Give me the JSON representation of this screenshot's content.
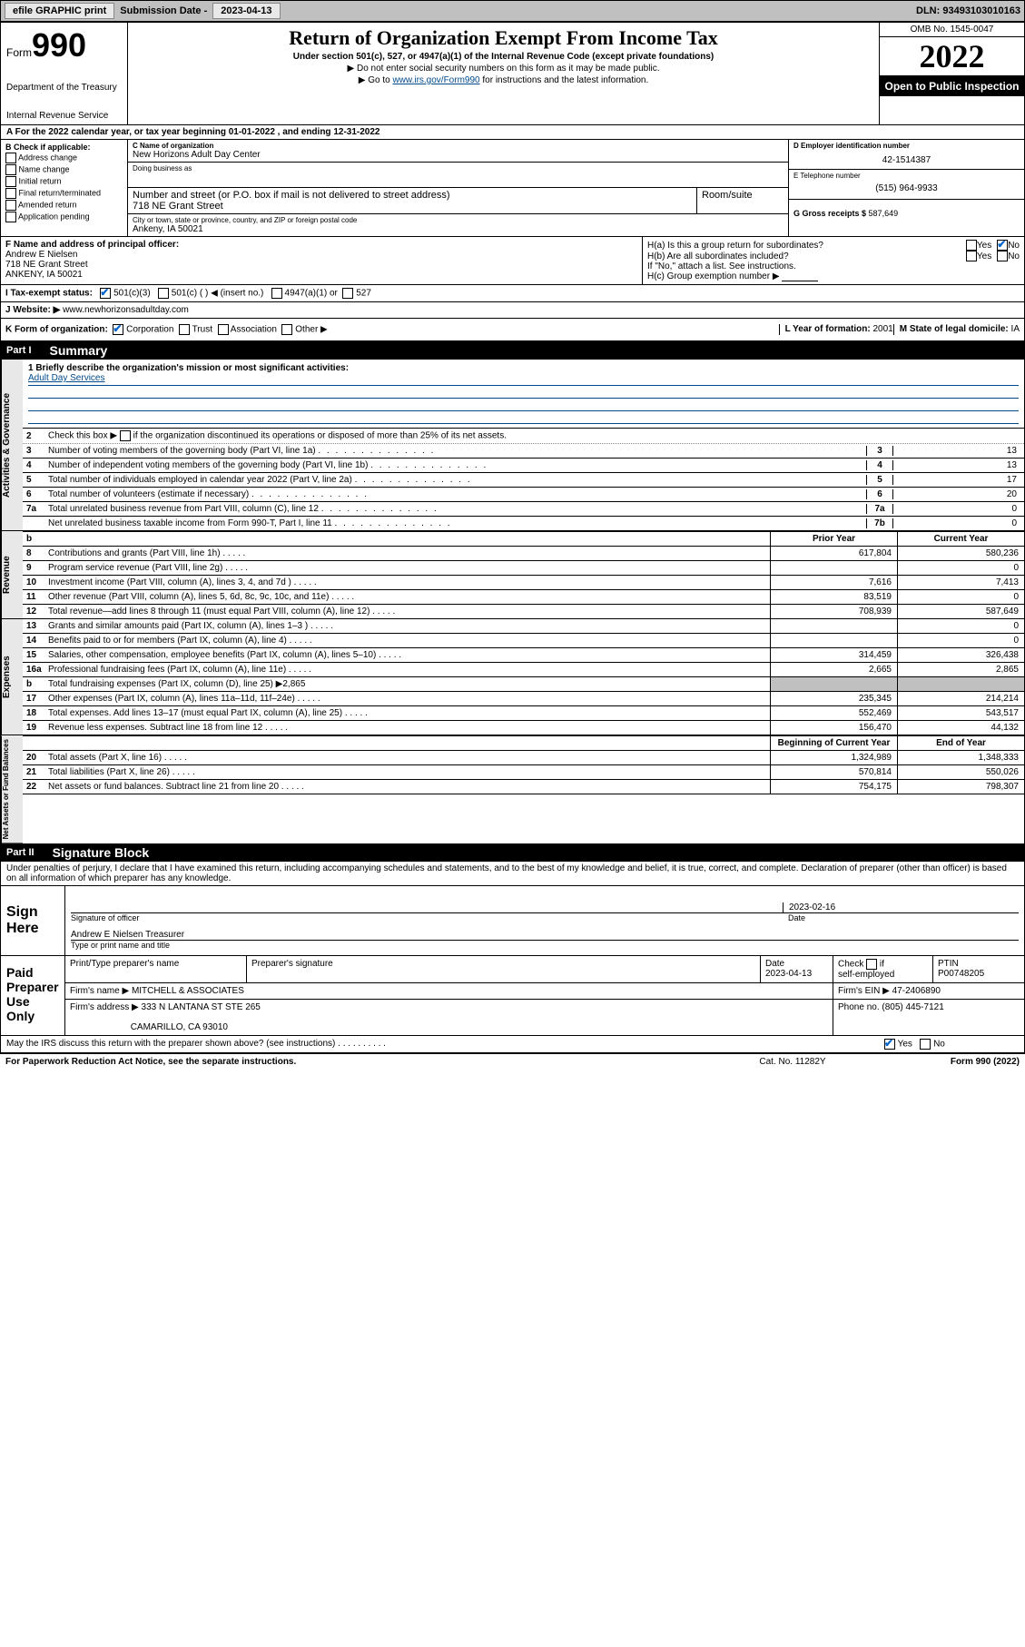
{
  "topbar": {
    "efile": "efile GRAPHIC print",
    "submission_label": "Submission Date - ",
    "submission_date": "2023-04-13",
    "dln_label": "DLN: ",
    "dln": "93493103010163"
  },
  "header": {
    "form_word": "Form",
    "form_num": "990",
    "dept": "Department of the Treasury",
    "irs": "Internal Revenue Service",
    "title": "Return of Organization Exempt From Income Tax",
    "subtitle": "Under section 501(c), 527, or 4947(a)(1) of the Internal Revenue Code (except private foundations)",
    "note": "▶ Do not enter social security numbers on this form as it may be made public.",
    "link_pre": "▶ Go to ",
    "link_text": "www.irs.gov/Form990",
    "link_post": " for instructions and the latest information.",
    "omb": "OMB No. 1545-0047",
    "year": "2022",
    "open": "Open to Public Inspection"
  },
  "row_a": "A For the 2022 calendar year, or tax year beginning 01-01-2022    , and ending 12-31-2022",
  "section_b": {
    "label": "B Check if applicable:",
    "items": [
      "Address change",
      "Name change",
      "Initial return",
      "Final return/terminated",
      "Amended return",
      "Application pending"
    ]
  },
  "section_c": {
    "name_label": "C Name of organization",
    "name": "New Horizons Adult Day Center",
    "dba_label": "Doing business as",
    "addr_label": "Number and street (or P.O. box if mail is not delivered to street address)",
    "room_label": "Room/suite",
    "addr": "718 NE Grant Street",
    "city_label": "City or town, state or province, country, and ZIP or foreign postal code",
    "city": "Ankeny, IA  50021"
  },
  "section_d": {
    "ein_label": "D Employer identification number",
    "ein": "42-1514387",
    "phone_label": "E Telephone number",
    "phone": "(515) 964-9933",
    "gross_label": "G Gross receipts $ ",
    "gross": "587,649"
  },
  "section_f": {
    "label": "F Name and address of principal officer:",
    "name": "Andrew E Nielsen",
    "addr": "718 NE Grant Street",
    "city": "ANKENY, IA  50021"
  },
  "section_h": {
    "ha": "H(a)  Is this a group return for subordinates?",
    "hb": "H(b)  Are all subordinates included?",
    "hb_note": "If \"No,\" attach a list. See instructions.",
    "hc": "H(c)  Group exemption number ▶",
    "yes": "Yes",
    "no": "No"
  },
  "row_i": {
    "label": "I    Tax-exempt status:",
    "opt1": "501(c)(3)",
    "opt2": "501(c) (   ) ◀ (insert no.)",
    "opt3": "4947(a)(1) or",
    "opt4": "527"
  },
  "row_j": {
    "label": "J   Website: ▶ ",
    "val": "www.newhorizonsadultday.com"
  },
  "row_k": {
    "label": "K Form of organization:",
    "opts": [
      "Corporation",
      "Trust",
      "Association",
      "Other ▶"
    ],
    "l_label": "L Year of formation: ",
    "l_val": "2001",
    "m_label": "M State of legal domicile: ",
    "m_val": "IA"
  },
  "part1": {
    "num": "Part I",
    "title": "Summary"
  },
  "summary": {
    "vert1": "Activities & Governance",
    "vert2": "Revenue",
    "vert3": "Expenses",
    "vert4": "Net Assets or Fund Balances",
    "line1_label": "1   Briefly describe the organization's mission or most significant activities:",
    "line1_val": "Adult Day Services",
    "line2": "Check this box ▶       if the organization discontinued its operations or disposed of more than 25% of its net assets.",
    "lines_gov": [
      {
        "n": "3",
        "d": "Number of voting members of the governing body (Part VI, line 1a)",
        "box": "3",
        "v": "13"
      },
      {
        "n": "4",
        "d": "Number of independent voting members of the governing body (Part VI, line 1b)",
        "box": "4",
        "v": "13"
      },
      {
        "n": "5",
        "d": "Total number of individuals employed in calendar year 2022 (Part V, line 2a)",
        "box": "5",
        "v": "17"
      },
      {
        "n": "6",
        "d": "Total number of volunteers (estimate if necessary)",
        "box": "6",
        "v": "20"
      },
      {
        "n": "7a",
        "d": "Total unrelated business revenue from Part VIII, column (C), line 12",
        "box": "7a",
        "v": "0"
      },
      {
        "n": "",
        "d": "Net unrelated business taxable income from Form 990-T, Part I, line 11",
        "box": "7b",
        "v": "0"
      }
    ],
    "col_headers": {
      "b": "b",
      "prior": "Prior Year",
      "current": "Current Year",
      "boy": "Beginning of Current Year",
      "eoy": "End of Year"
    },
    "lines_rev": [
      {
        "n": "8",
        "d": "Contributions and grants (Part VIII, line 1h)",
        "p": "617,804",
        "c": "580,236"
      },
      {
        "n": "9",
        "d": "Program service revenue (Part VIII, line 2g)",
        "p": "",
        "c": "0"
      },
      {
        "n": "10",
        "d": "Investment income (Part VIII, column (A), lines 3, 4, and 7d )",
        "p": "7,616",
        "c": "7,413"
      },
      {
        "n": "11",
        "d": "Other revenue (Part VIII, column (A), lines 5, 6d, 8c, 9c, 10c, and 11e)",
        "p": "83,519",
        "c": "0"
      },
      {
        "n": "12",
        "d": "Total revenue—add lines 8 through 11 (must equal Part VIII, column (A), line 12)",
        "p": "708,939",
        "c": "587,649"
      }
    ],
    "lines_exp": [
      {
        "n": "13",
        "d": "Grants and similar amounts paid (Part IX, column (A), lines 1–3 )",
        "p": "",
        "c": "0"
      },
      {
        "n": "14",
        "d": "Benefits paid to or for members (Part IX, column (A), line 4)",
        "p": "",
        "c": "0"
      },
      {
        "n": "15",
        "d": "Salaries, other compensation, employee benefits (Part IX, column (A), lines 5–10)",
        "p": "314,459",
        "c": "326,438"
      },
      {
        "n": "16a",
        "d": "Professional fundraising fees (Part IX, column (A), line 11e)",
        "p": "2,665",
        "c": "2,865"
      },
      {
        "n": "b",
        "d": "Total fundraising expenses (Part IX, column (D), line 25) ▶2,865",
        "p": "—shade—",
        "c": "—shade—"
      },
      {
        "n": "17",
        "d": "Other expenses (Part IX, column (A), lines 11a–11d, 11f–24e)",
        "p": "235,345",
        "c": "214,214"
      },
      {
        "n": "18",
        "d": "Total expenses. Add lines 13–17 (must equal Part IX, column (A), line 25)",
        "p": "552,469",
        "c": "543,517"
      },
      {
        "n": "19",
        "d": "Revenue less expenses. Subtract line 18 from line 12",
        "p": "156,470",
        "c": "44,132"
      }
    ],
    "lines_net": [
      {
        "n": "20",
        "d": "Total assets (Part X, line 16)",
        "p": "1,324,989",
        "c": "1,348,333"
      },
      {
        "n": "21",
        "d": "Total liabilities (Part X, line 26)",
        "p": "570,814",
        "c": "550,026"
      },
      {
        "n": "22",
        "d": "Net assets or fund balances. Subtract line 21 from line 20",
        "p": "754,175",
        "c": "798,307"
      }
    ]
  },
  "part2": {
    "num": "Part II",
    "title": "Signature Block"
  },
  "sig": {
    "declaration": "Under penalties of perjury, I declare that I have examined this return, including accompanying schedules and statements, and to the best of my knowledge and belief, it is true, correct, and complete. Declaration of preparer (other than officer) is based on all information of which preparer has any knowledge.",
    "sign_here": "Sign Here",
    "sig_officer": "Signature of officer",
    "date": "Date",
    "date_val": "2023-02-16",
    "officer_name": "Andrew E Nielsen  Treasurer",
    "type_name": "Type or print name and title",
    "paid_label": "Paid Preparer Use Only",
    "prep_name_h": "Print/Type preparer's name",
    "prep_sig_h": "Preparer's signature",
    "prep_date_h": "Date",
    "prep_date": "2023-04-13",
    "prep_check_h": "Check         if self-employed",
    "ptin_h": "PTIN",
    "ptin": "P00748205",
    "firm_name_l": "Firm's name     ▶ ",
    "firm_name": "MITCHELL & ASSOCIATES",
    "firm_ein_l": "Firm's EIN ▶ ",
    "firm_ein": "47-2406890",
    "firm_addr_l": "Firm's address ▶ ",
    "firm_addr1": "333 N LANTANA ST STE 265",
    "firm_addr2": "CAMARILLO, CA  93010",
    "firm_phone_l": "Phone no. ",
    "firm_phone": "(805) 445-7121",
    "discuss": "May the IRS discuss this return with the preparer shown above? (see instructions)"
  },
  "footer": {
    "pra": "For Paperwork Reduction Act Notice, see the separate instructions.",
    "cat": "Cat. No. 11282Y",
    "form": "Form 990 (2022)"
  },
  "colors": {
    "link": "#004b8d",
    "topbar_bg": "#c0c0c0",
    "check": "#0066cc"
  }
}
